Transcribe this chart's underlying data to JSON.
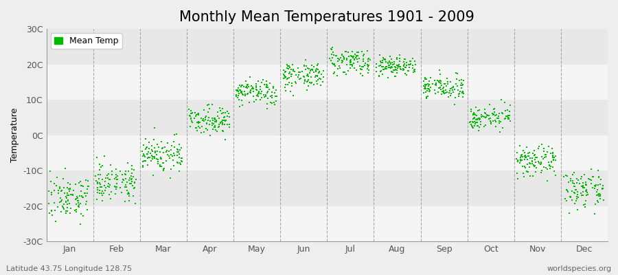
{
  "title": "Monthly Mean Temperatures 1901 - 2009",
  "ylabel": "Temperature",
  "ylim": [
    -30,
    30
  ],
  "yticks": [
    -30,
    -20,
    -10,
    0,
    10,
    20,
    30
  ],
  "ytick_labels": [
    "-30C",
    "-20C",
    "-10C",
    "0C",
    "10C",
    "20C",
    "30C"
  ],
  "months": [
    "Jan",
    "Feb",
    "Mar",
    "Apr",
    "May",
    "Jun",
    "Jul",
    "Aug",
    "Sep",
    "Oct",
    "Nov",
    "Dec"
  ],
  "month_means": [
    -17.5,
    -13.0,
    -5.5,
    4.5,
    12.0,
    17.0,
    21.0,
    19.5,
    13.5,
    5.0,
    -7.5,
    -15.5
  ],
  "month_stds": [
    3.0,
    2.5,
    2.5,
    1.8,
    1.8,
    1.8,
    1.8,
    1.5,
    1.5,
    1.5,
    2.0,
    2.5
  ],
  "n_points": 109,
  "dot_color": "#00BB00",
  "dot_size": 4,
  "bg_color": "#EEEEEE",
  "plot_bg": "#EEEEEE",
  "stripe_light": "#F5F5F5",
  "stripe_dark": "#E8E8E8",
  "vline_color": "#888888",
  "legend_label": "Mean Temp",
  "bottom_left_text": "Latitude 43.75 Longitude 128.75",
  "bottom_right_text": "worldspecies.org",
  "title_fontsize": 15,
  "axis_fontsize": 9,
  "tick_fontsize": 9,
  "annotation_fontsize": 8
}
